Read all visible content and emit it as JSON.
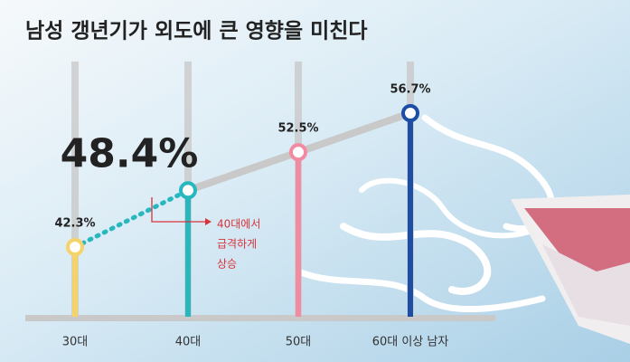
{
  "chart_data": {
    "type": "line",
    "title": "남성 갱년기가 외도에 큰 영향을 미친다",
    "categories": [
      "30대",
      "40대",
      "50대",
      "60대 이상 남자"
    ],
    "values": [
      42.3,
      48.4,
      52.5,
      56.7
    ],
    "value_labels": [
      "42.3%",
      "48.4%",
      "52.5%",
      "56.7%"
    ],
    "colors": [
      "#f6d36a",
      "#27b7bf",
      "#f28aa2",
      "#1d4ea6"
    ],
    "highlight_index": 1,
    "annotation": [
      "40대에서",
      "급격하게",
      "상승"
    ],
    "annotation_color": "#d9333a"
  }
}
